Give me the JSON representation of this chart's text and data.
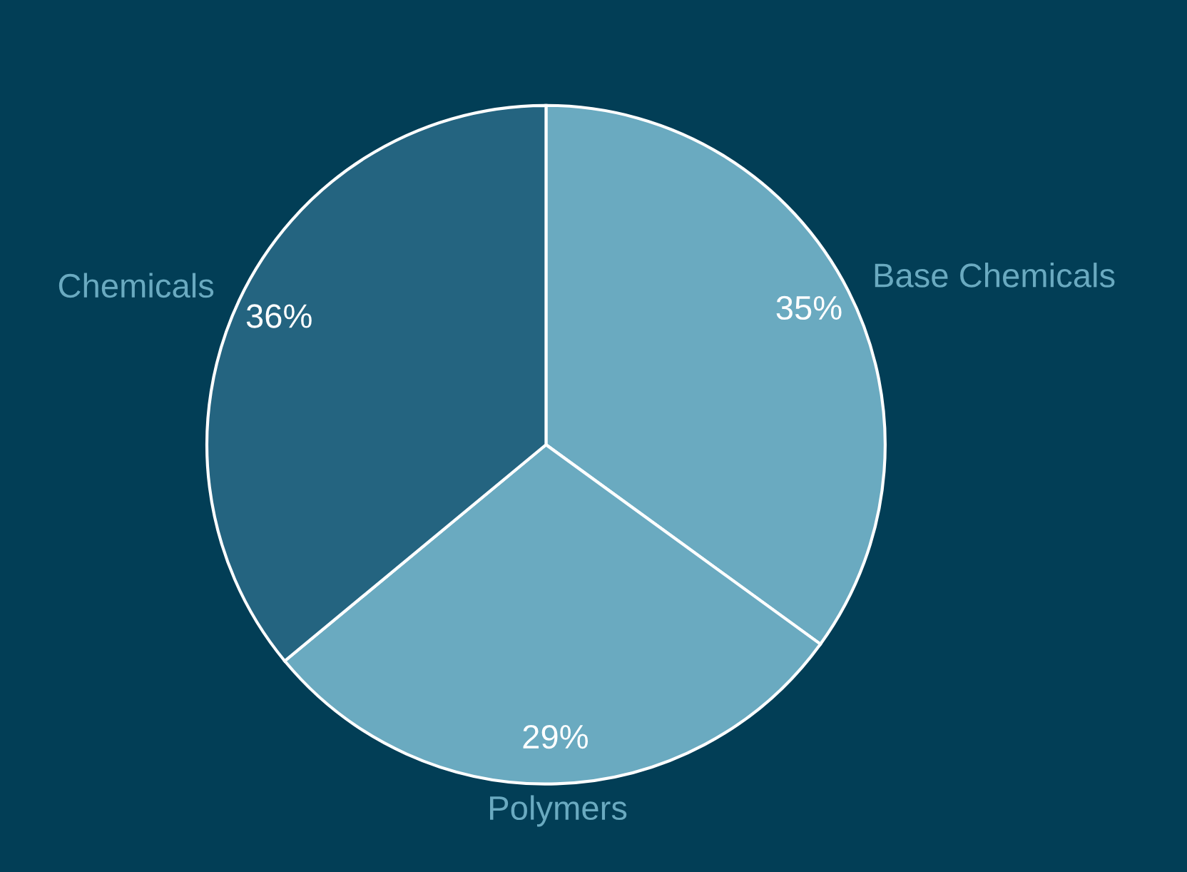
{
  "chart_data": {
    "type": "pie",
    "categories": [
      "Base Chemicals",
      "Polymers",
      "Chemicals"
    ],
    "values": [
      35,
      29,
      36
    ],
    "colors": [
      "#6aaac0",
      "#6aaac0",
      "#246480"
    ],
    "value_labels": [
      "35%",
      "29%",
      "36%"
    ],
    "legend": false
  }
}
